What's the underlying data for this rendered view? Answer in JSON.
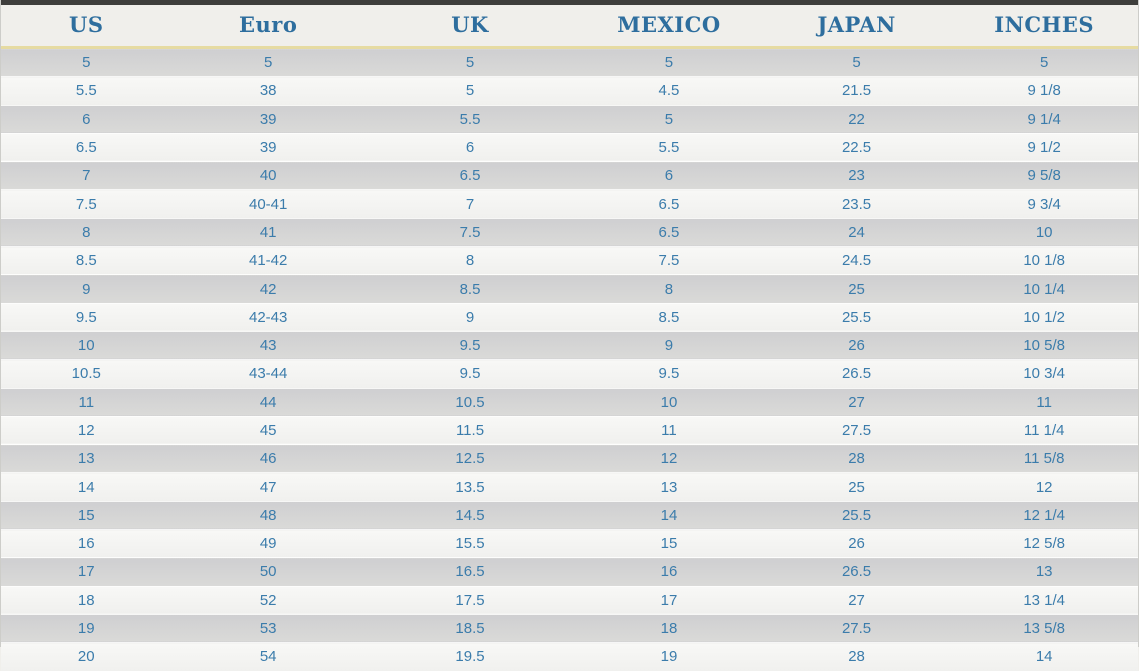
{
  "chart_data": {
    "type": "table",
    "columns": [
      "US",
      "Euro",
      "UK",
      "MEXICO",
      "JAPAN",
      "INCHES"
    ],
    "rows": [
      [
        "5",
        "5",
        "5",
        "5",
        "5",
        "5"
      ],
      [
        "5.5",
        "38",
        "5",
        "4.5",
        "21.5",
        "9 1/8"
      ],
      [
        "6",
        "39",
        "5.5",
        "5",
        "22",
        "9 1/4"
      ],
      [
        "6.5",
        "39",
        "6",
        "5.5",
        "22.5",
        "9 1/2"
      ],
      [
        "7",
        "40",
        "6.5",
        "6",
        "23",
        "9 5/8"
      ],
      [
        "7.5",
        "40-41",
        "7",
        "6.5",
        "23.5",
        "9 3/4"
      ],
      [
        "8",
        "41",
        "7.5",
        "6.5",
        "24",
        "10"
      ],
      [
        "8.5",
        "41-42",
        "8",
        "7.5",
        "24.5",
        "10 1/8"
      ],
      [
        "9",
        "42",
        "8.5",
        "8",
        "25",
        "10 1/4"
      ],
      [
        "9.5",
        "42-43",
        "9",
        "8.5",
        "25.5",
        "10 1/2"
      ],
      [
        "10",
        "43",
        "9.5",
        "9",
        "26",
        "10 5/8"
      ],
      [
        "10.5",
        "43-44",
        "9.5",
        "9.5",
        "26.5",
        "10 3/4"
      ],
      [
        "11",
        "44",
        "10.5",
        "10",
        "27",
        "11"
      ],
      [
        "12",
        "45",
        "11.5",
        "11",
        "27.5",
        "11 1/4"
      ],
      [
        "13",
        "46",
        "12.5",
        "12",
        "28",
        "11 5/8"
      ],
      [
        "14",
        "47",
        "13.5",
        "13",
        "25",
        "12"
      ],
      [
        "15",
        "48",
        "14.5",
        "14",
        "25.5",
        "12 1/4"
      ],
      [
        "16",
        "49",
        "15.5",
        "15",
        "26",
        "12 5/8"
      ],
      [
        "17",
        "50",
        "16.5",
        "16",
        "26.5",
        "13"
      ],
      [
        "18",
        "52",
        "17.5",
        "17",
        "27",
        "13 1/4"
      ],
      [
        "19",
        "53",
        "18.5",
        "18",
        "27.5",
        "13 5/8"
      ],
      [
        "20",
        "54",
        "19.5",
        "19",
        "28",
        "14"
      ]
    ]
  },
  "colors": {
    "header_text": "#2e6e9e",
    "cell_text": "#3b7cab",
    "row_shade": "#d4d4d2",
    "row_light": "#f3f3f1",
    "header_bg": "#f0efeb",
    "divider_yellow": "#e6dba2",
    "top_strip": "#3e3e3c"
  }
}
